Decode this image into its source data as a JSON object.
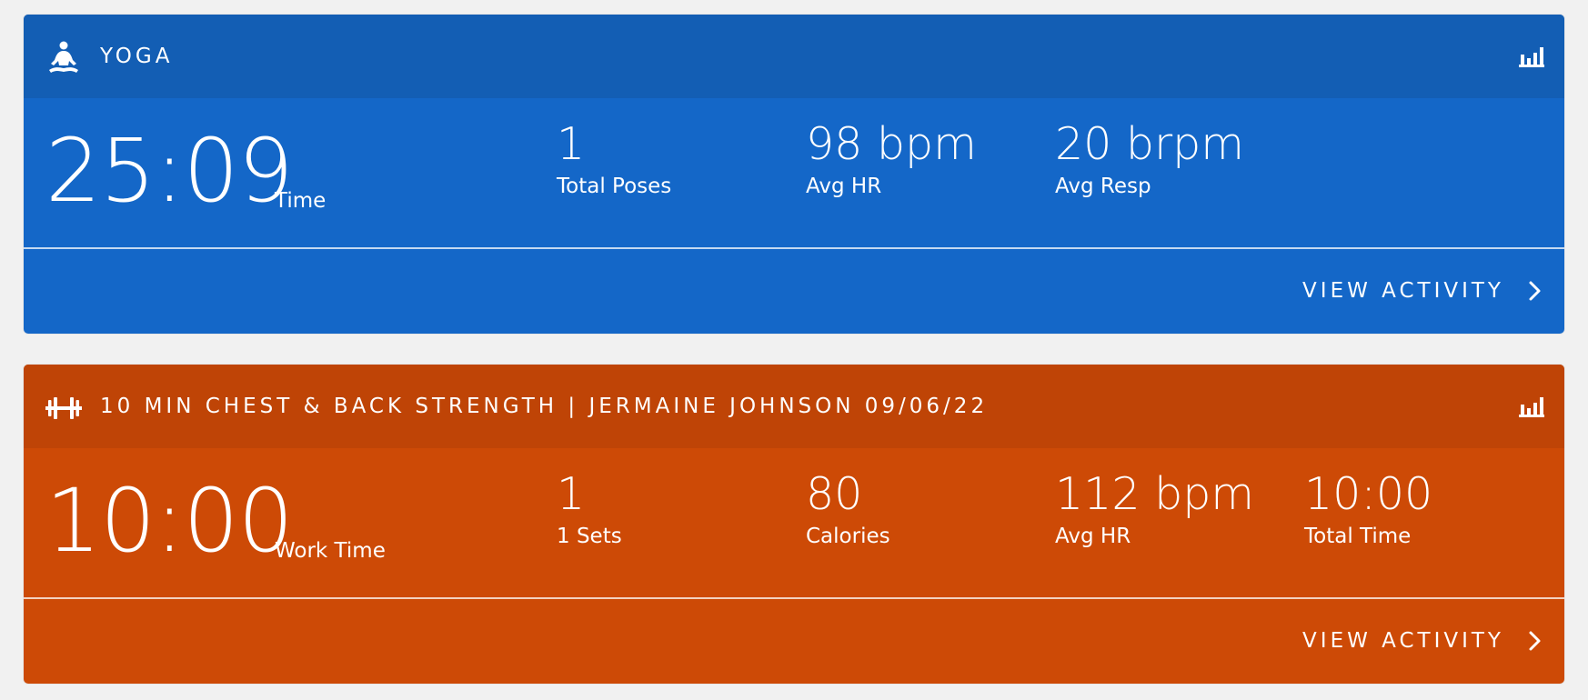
{
  "cards": [
    {
      "title": "YOGA",
      "header_icon": "yoga-icon",
      "primary": {
        "value": "25:09",
        "label": "Time"
      },
      "metrics": [
        {
          "value": "1",
          "label": "Total Poses"
        },
        {
          "value": "98 bpm",
          "label": "Avg HR"
        },
        {
          "value": "20 brpm",
          "label": "Avg Resp"
        }
      ],
      "footer_label": "VIEW ACTIVITY",
      "colors": {
        "header": "#135eb4",
        "body": "#1467c8"
      }
    },
    {
      "title": "10 MIN CHEST & BACK STRENGTH | JERMAINE JOHNSON 09/06/22",
      "header_icon": "dumbbell-icon",
      "primary": {
        "value": "10:00",
        "label": "Work Time"
      },
      "metrics": [
        {
          "value": "1",
          "label": "1 Sets"
        },
        {
          "value": "80",
          "label": "Calories"
        },
        {
          "value": "112 bpm",
          "label": "Avg HR"
        },
        {
          "value": "10:00",
          "label": "Total Time"
        }
      ],
      "footer_label": "VIEW ACTIVITY",
      "colors": {
        "header": "#bf4406",
        "body": "#cd4a06"
      }
    }
  ]
}
